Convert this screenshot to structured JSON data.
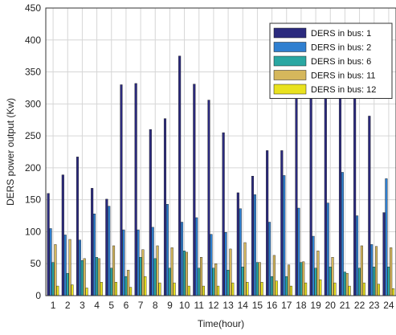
{
  "chart_data": {
    "type": "bar",
    "xlabel": "Time(hour)",
    "ylabel": "DERS power output  (Kw)",
    "ylim": [
      0,
      450
    ],
    "yticks": [
      0,
      50,
      100,
      150,
      200,
      250,
      300,
      350,
      400,
      450
    ],
    "grid": true,
    "legend_position": "top-right",
    "categories": [
      "1",
      "2",
      "3",
      "4",
      "5",
      "6",
      "7",
      "8",
      "9",
      "10",
      "11",
      "12",
      "13",
      "14",
      "15",
      "16",
      "17",
      "18",
      "19",
      "20",
      "21",
      "22",
      "23",
      "24"
    ],
    "series": [
      {
        "name": "DERS in bus: 1",
        "color": "#2b2a7e",
        "values": [
          160,
          189,
          217,
          168,
          151,
          330,
          332,
          260,
          277,
          375,
          331,
          306,
          255,
          161,
          187,
          227,
          227,
          310,
          320,
          320,
          330,
          320,
          281,
          130
        ]
      },
      {
        "name": "DERS in bus: 2",
        "color": "#2f7fd0",
        "values": [
          105,
          95,
          87,
          128,
          140,
          103,
          103,
          107,
          143,
          115,
          122,
          96,
          99,
          136,
          158,
          115,
          188,
          137,
          93,
          145,
          193,
          125,
          80,
          183
        ]
      },
      {
        "name": "DERS in bus: 6",
        "color": "#2aa7a2",
        "values": [
          52,
          35,
          55,
          60,
          43,
          30,
          60,
          58,
          43,
          70,
          43,
          43,
          40,
          45,
          52,
          30,
          30,
          52,
          43,
          45,
          37,
          43,
          45,
          45
        ]
      },
      {
        "name": "DERS in bus: 11",
        "color": "#d5b75c",
        "values": [
          80,
          88,
          58,
          58,
          78,
          40,
          72,
          78,
          75,
          68,
          60,
          50,
          73,
          83,
          52,
          63,
          48,
          53,
          70,
          60,
          35,
          78,
          77,
          75
        ]
      },
      {
        "name": "DERS in bus: 12",
        "color": "#e9e21f",
        "values": [
          15,
          17,
          12,
          21,
          21,
          13,
          30,
          20,
          20,
          15,
          15,
          15,
          20,
          21,
          21,
          23,
          15,
          20,
          25,
          20,
          15,
          20,
          18,
          11
        ]
      }
    ]
  }
}
